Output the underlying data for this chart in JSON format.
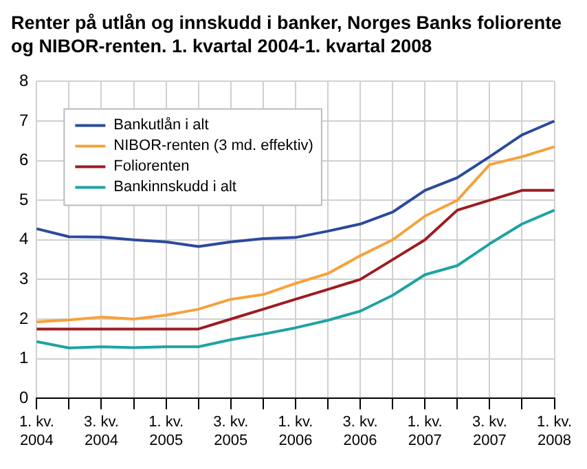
{
  "chart_data": {
    "type": "line",
    "title": "Renter på utlån og innskudd i banker, Norges Banks foliorente og NIBOR-renten. 1. kvartal 2004-1. kvartal 2008",
    "categories": [
      "1. kv. 2004",
      null,
      "3. kv. 2004",
      null,
      "1. kv. 2005",
      null,
      "3. kv. 2005",
      null,
      "1. kv. 2006",
      null,
      "3. kv. 2006",
      null,
      "1. kv. 2007",
      null,
      "3. kv. 2007",
      null,
      "1. kv. 2008"
    ],
    "series": [
      {
        "name": "Bankutlån i alt",
        "color": "#2a4a9c",
        "values": [
          4.28,
          4.08,
          4.07,
          4.0,
          3.95,
          3.83,
          3.95,
          4.03,
          4.06,
          4.22,
          4.4,
          4.7,
          5.25,
          5.57,
          6.1,
          6.65,
          7.0
        ]
      },
      {
        "name": "NIBOR-renten (3 md. effektiv)",
        "color": "#f7a13a",
        "values": [
          1.93,
          1.98,
          2.05,
          2.0,
          2.1,
          2.25,
          2.5,
          2.62,
          2.9,
          3.15,
          3.6,
          4.0,
          4.6,
          5.0,
          5.9,
          6.1,
          6.35
        ]
      },
      {
        "name": "Foliorenten",
        "color": "#9e1b20",
        "values": [
          1.75,
          1.75,
          1.75,
          1.75,
          1.75,
          1.75,
          2.0,
          2.25,
          2.5,
          2.75,
          3.0,
          3.5,
          4.0,
          4.75,
          5.0,
          5.25,
          5.25
        ]
      },
      {
        "name": "Bankinnskudd i alt",
        "color": "#1ea3a3",
        "values": [
          1.43,
          1.27,
          1.3,
          1.28,
          1.3,
          1.3,
          1.48,
          1.62,
          1.78,
          1.97,
          2.2,
          2.6,
          3.12,
          3.35,
          3.9,
          4.4,
          4.75
        ]
      }
    ],
    "ylim": [
      0,
      8
    ],
    "yticks": [
      0,
      1,
      2,
      3,
      4,
      5,
      6,
      7,
      8
    ],
    "grid": true,
    "legend": "top left",
    "marker": "none",
    "line_style": "solid"
  }
}
